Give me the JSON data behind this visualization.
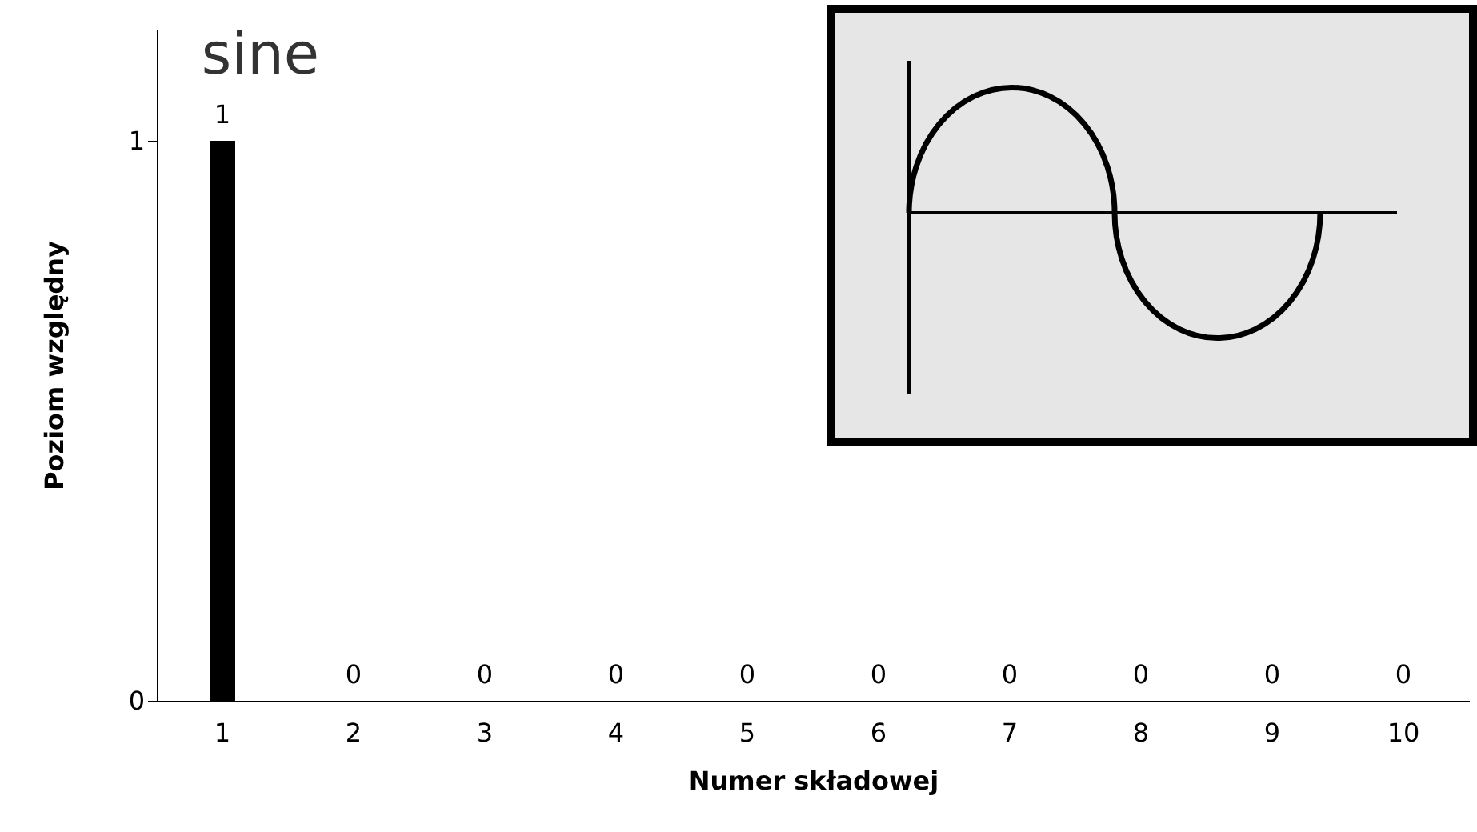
{
  "chart_data": {
    "type": "bar",
    "title": "sine",
    "xlabel": "Numer składowej",
    "ylabel": "Poziom względny",
    "categories": [
      "1",
      "2",
      "3",
      "4",
      "5",
      "6",
      "7",
      "8",
      "9",
      "10"
    ],
    "values": [
      1,
      0,
      0,
      0,
      0,
      0,
      0,
      0,
      0,
      0
    ],
    "color": "#000000",
    "ylim": [
      0,
      1.2
    ],
    "yticks": [
      0,
      1
    ],
    "grid": false,
    "data_labels": true
  }
}
